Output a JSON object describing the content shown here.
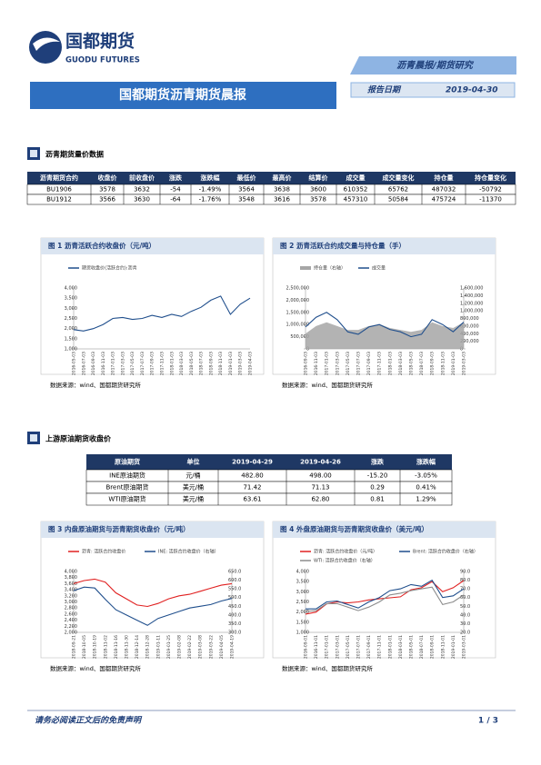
{
  "header": {
    "logo_cn": "国都期货",
    "logo_en": "GUODU FUTURES",
    "tag": "沥青晨报/期货研究",
    "title": "国都期货沥青期货晨报",
    "date_label": "报告日期",
    "date": "2019-04-30"
  },
  "section1": {
    "title": "沥青期货量价数据",
    "table": {
      "columns": [
        "沥青期货合约",
        "收盘价",
        "前收盘价",
        "涨跌",
        "涨跌幅",
        "最低价",
        "最高价",
        "结算价",
        "成交量",
        "成交量变化",
        "持仓量",
        "持仓量变化"
      ],
      "rows": [
        [
          "BU1906",
          "3578",
          "3632",
          "-54",
          "-1.49%",
          "3564",
          "3638",
          "3600",
          "610352",
          "65762",
          "487032",
          "-50792"
        ],
        [
          "BU1912",
          "3566",
          "3630",
          "-64",
          "-1.76%",
          "3548",
          "3616",
          "3578",
          "457310",
          "50584",
          "475724",
          "-11370"
        ]
      ]
    }
  },
  "section2": {
    "title": "上游原油期货收盘价",
    "table": {
      "columns": [
        "原油期货",
        "单位",
        "2019-04-29",
        "2019-04-26",
        "涨跌",
        "涨跌幅"
      ],
      "rows": [
        [
          "INE原油期货",
          "元/桶",
          "482.80",
          "498.00",
          "-15.20",
          "-3.05%"
        ],
        [
          "Brent原油期货",
          "美元/桶",
          "71.42",
          "71.13",
          "0.29",
          "0.41%"
        ],
        [
          "WTI原油期货",
          "美元/桶",
          "63.61",
          "62.80",
          "0.81",
          "1.29%"
        ]
      ]
    }
  },
  "chart_data": [
    {
      "type": "line",
      "title": "图 1 沥青活跃合约收盘价（元/吨）",
      "source": "数据来源：wind、国都期货研究所",
      "categories": [
        "2016-05-03",
        "2016-07-03",
        "2016-09-03",
        "2016-11-03",
        "2017-01-03",
        "2017-03-03",
        "2017-05-03",
        "2017-07-03",
        "2017-09-03",
        "2017-11-03",
        "2018-01-03",
        "2018-03-03",
        "2018-05-03",
        "2018-07-03",
        "2018-09-03",
        "2018-11-03",
        "2019-01-03",
        "2019-03-03",
        "2019-04-03"
      ],
      "series": [
        {
          "name": "期货收盘价(活跃合约):沥青",
          "color": "#1f4e8c",
          "values": [
            1950,
            1880,
            2000,
            2200,
            2500,
            2550,
            2450,
            2500,
            2650,
            2550,
            2700,
            2600,
            2850,
            3050,
            3400,
            3600,
            2700,
            3200,
            3500
          ]
        }
      ],
      "ylim": [
        1000,
        4000
      ],
      "yticks": [
        {
          "value": 1000,
          "label": "1,000"
        },
        {
          "value": 1500,
          "label": "1,500"
        },
        {
          "value": 2000,
          "label": "2,000"
        },
        {
          "value": 2500,
          "label": "2,500"
        },
        {
          "value": 3000,
          "label": "3,000"
        },
        {
          "value": 3500,
          "label": "3,500"
        },
        {
          "value": 4000,
          "label": "4,000"
        }
      ]
    },
    {
      "type": "line",
      "title": "图 2 沥青活跃合约成交量与持仓量（手）",
      "source": "数据来源：wind、国都期货研究所",
      "categories": [
        "2016-09-03",
        "2016-11-03",
        "2017-01-03",
        "2017-03-03",
        "2017-05-03",
        "2017-07-03",
        "2017-09-03",
        "2017-11-03",
        "2018-01-03",
        "2018-03-03",
        "2018-05-03",
        "2018-07-03",
        "2018-09-03",
        "2018-11-03",
        "2019-01-03",
        "2019-03-03"
      ],
      "series": [
        {
          "name": "持仓量（右轴）",
          "color": "#a6a6a6",
          "type": "area",
          "axis": "y2",
          "values": [
            400000,
            600000,
            700000,
            600000,
            500000,
            500000,
            600000,
            650000,
            550000,
            500000,
            450000,
            500000,
            700000,
            600000,
            550000,
            700000
          ]
        },
        {
          "name": "成交量",
          "color": "#1f4e8c",
          "values": [
            900000,
            1300000,
            1500000,
            1200000,
            700000,
            600000,
            900000,
            1000000,
            800000,
            700000,
            500000,
            600000,
            1200000,
            1000000,
            700000,
            1100000
          ]
        }
      ],
      "ylim": [
        0,
        2500000
      ],
      "yticks": [
        0,
        {
          "value": 500000,
          "label": "500,000"
        },
        {
          "value": 1000000,
          "label": "1,000,000"
        },
        {
          "value": 1500000,
          "label": "1,500,000"
        },
        {
          "value": 2000000,
          "label": "2,000,000"
        },
        {
          "value": 2500000,
          "label": "2,500,000"
        }
      ],
      "y2lim": [
        0,
        1600000
      ],
      "y2ticks": [
        0,
        {
          "value": 200000,
          "label": "200,000"
        },
        {
          "value": 400000,
          "label": "400,000"
        },
        {
          "value": 600000,
          "label": "600,000"
        },
        {
          "value": 800000,
          "label": "800,000"
        },
        {
          "value": 1000000,
          "label": "1,000,000"
        },
        {
          "value": 1200000,
          "label": "1,200,000"
        },
        {
          "value": 1400000,
          "label": "1,400,000"
        },
        {
          "value": 1600000,
          "label": "1,600,000"
        }
      ]
    },
    {
      "type": "line",
      "title": "图 3 内盘原油期货与沥青期货收盘价（元/吨）",
      "source": "数据来源：wind、国都期货研究所",
      "categories": [
        "2018-09-21",
        "2018-10-05",
        "2018-10-19",
        "2018-11-02",
        "2018-11-16",
        "2018-11-30",
        "2018-12-14",
        "2018-12-28",
        "2019-01-11",
        "2019-01-25",
        "2019-02-08",
        "2019-02-22",
        "2019-03-08",
        "2019-03-22",
        "2019-04-05",
        "2019-04-19"
      ],
      "series": [
        {
          "name": "沥青: 活跃合约收盘价",
          "color": "#e02020",
          "values": [
            3600,
            3700,
            3750,
            3650,
            3300,
            3100,
            2900,
            2850,
            2950,
            3100,
            3200,
            3250,
            3350,
            3450,
            3550,
            3600
          ]
        },
        {
          "name": "INE: 活跃合约收盘价（右轴）",
          "color": "#1f4e8c",
          "axis": "y2",
          "values": [
            540,
            560,
            555,
            490,
            430,
            400,
            370,
            340,
            380,
            400,
            420,
            440,
            450,
            460,
            480,
            495
          ]
        }
      ],
      "ylim": [
        2000,
        4000
      ],
      "yticks": [
        {
          "value": 2000,
          "label": "2,000"
        },
        {
          "value": 2200,
          "label": "2,200"
        },
        {
          "value": 2400,
          "label": "2,400"
        },
        {
          "value": 2600,
          "label": "2,600"
        },
        {
          "value": 2800,
          "label": "2,800"
        },
        {
          "value": 3000,
          "label": "3,000"
        },
        {
          "value": 3200,
          "label": "3,200"
        },
        {
          "value": 3400,
          "label": "3,400"
        },
        {
          "value": 3600,
          "label": "3,600"
        },
        {
          "value": 3800,
          "label": "3,800"
        },
        {
          "value": 4000,
          "label": "4,000"
        }
      ],
      "y2lim": [
        300,
        650
      ],
      "y2ticks": [
        {
          "value": 300,
          "label": "300.0"
        },
        {
          "value": 350,
          "label": "350.0"
        },
        {
          "value": 400,
          "label": "400.0"
        },
        {
          "value": 450,
          "label": "450.0"
        },
        {
          "value": 500,
          "label": "500.0"
        },
        {
          "value": 550,
          "label": "550.0"
        },
        {
          "value": 600,
          "label": "600.0"
        },
        {
          "value": 650,
          "label": "650.0"
        }
      ]
    },
    {
      "type": "line",
      "title": "图 4 外盘原油期货与沥青期货收盘价（美元/吨）",
      "source": "数据来源：wind、国都期货研究所",
      "categories": [
        "2016-09-01",
        "2016-11-01",
        "2017-01-01",
        "2017-03-01",
        "2017-05-01",
        "2017-07-01",
        "2017-09-01",
        "2017-11-01",
        "2018-01-01",
        "2018-03-01",
        "2018-05-01",
        "2018-07-01",
        "2018-09-01",
        "2018-11-01",
        "2019-01-01",
        "2019-03-01"
      ],
      "series": [
        {
          "name": "沥青: 活跃合约收盘价（元/吨）",
          "color": "#e02020",
          "values": [
            1900,
            2000,
            2400,
            2500,
            2450,
            2500,
            2600,
            2650,
            2700,
            2750,
            3100,
            3200,
            3500,
            3000,
            3200,
            3550
          ]
        },
        {
          "name": "Brent: 活跃合约收盘价（右轴）",
          "color": "#1f4e8c",
          "axis": "y2",
          "values": [
            47,
            47,
            55,
            56,
            52,
            48,
            55,
            60,
            68,
            70,
            75,
            73,
            80,
            60,
            62,
            70
          ]
        },
        {
          "name": "WTI: 活跃合约收盘价（右轴）",
          "color": "#8c8c8c",
          "axis": "y2",
          "values": [
            44,
            45,
            53,
            53,
            49,
            45,
            49,
            55,
            63,
            65,
            68,
            70,
            72,
            52,
            55,
            63
          ]
        }
      ],
      "ylim": [
        1000,
        4000
      ],
      "yticks": [
        {
          "value": 1000,
          "label": "1,000"
        },
        {
          "value": 1500,
          "label": "1,500"
        },
        {
          "value": 2000,
          "label": "2,000"
        },
        {
          "value": 2500,
          "label": "2,500"
        },
        {
          "value": 3000,
          "label": "3,000"
        },
        {
          "value": 3500,
          "label": "3,500"
        },
        {
          "value": 4000,
          "label": "4,000"
        }
      ],
      "y2lim": [
        20,
        90
      ],
      "y2ticks": [
        {
          "value": 20,
          "label": "20.0"
        },
        {
          "value": 30,
          "label": "30.0"
        },
        {
          "value": 40,
          "label": "40.0"
        },
        {
          "value": 50,
          "label": "50.0"
        },
        {
          "value": 60,
          "label": "60.0"
        },
        {
          "value": 70,
          "label": "70.0"
        },
        {
          "value": 80,
          "label": "80.0"
        },
        {
          "value": 90,
          "label": "90.0"
        }
      ]
    }
  ],
  "footer": {
    "disclaimer": "请务必阅读正文后的免责声明",
    "page": "1 / 3"
  }
}
